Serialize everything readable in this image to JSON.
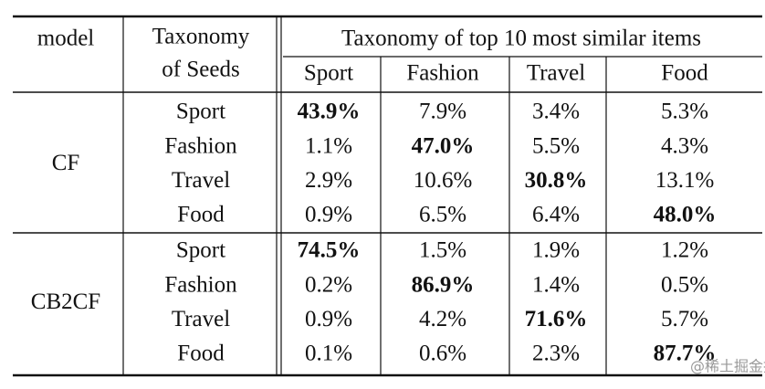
{
  "header": {
    "model": "model",
    "seeds": [
      "Taxonomy",
      "of Seeds"
    ],
    "span": "Taxonomy of top 10 most similar items",
    "columns": [
      "Sport",
      "Fashion",
      "Travel",
      "Food"
    ]
  },
  "groups": [
    {
      "model": "CF",
      "rows": [
        {
          "seed": "Sport",
          "cells": [
            "43.9%",
            "7.9%",
            "3.4%",
            "5.3%"
          ],
          "bold": 0
        },
        {
          "seed": "Fashion",
          "cells": [
            "1.1%",
            "47.0%",
            "5.5%",
            "4.3%"
          ],
          "bold": 1
        },
        {
          "seed": "Travel",
          "cells": [
            "2.9%",
            "10.6%",
            "30.8%",
            "13.1%"
          ],
          "bold": 2
        },
        {
          "seed": "Food",
          "cells": [
            "0.9%",
            "6.5%",
            "6.4%",
            "48.0%"
          ],
          "bold": 3
        }
      ]
    },
    {
      "model": "CB2CF",
      "rows": [
        {
          "seed": "Sport",
          "cells": [
            "74.5%",
            "1.5%",
            "1.9%",
            "1.2%"
          ],
          "bold": 0
        },
        {
          "seed": "Fashion",
          "cells": [
            "0.2%",
            "86.9%",
            "1.4%",
            "0.5%"
          ],
          "bold": 1
        },
        {
          "seed": "Travel",
          "cells": [
            "0.9%",
            "4.2%",
            "71.6%",
            "5.7%"
          ],
          "bold": 2
        },
        {
          "seed": "Food",
          "cells": [
            "0.1%",
            "0.6%",
            "2.3%",
            "87.7%"
          ],
          "bold": 3
        }
      ]
    }
  ],
  "watermark": "@稀土掘金技术社区"
}
